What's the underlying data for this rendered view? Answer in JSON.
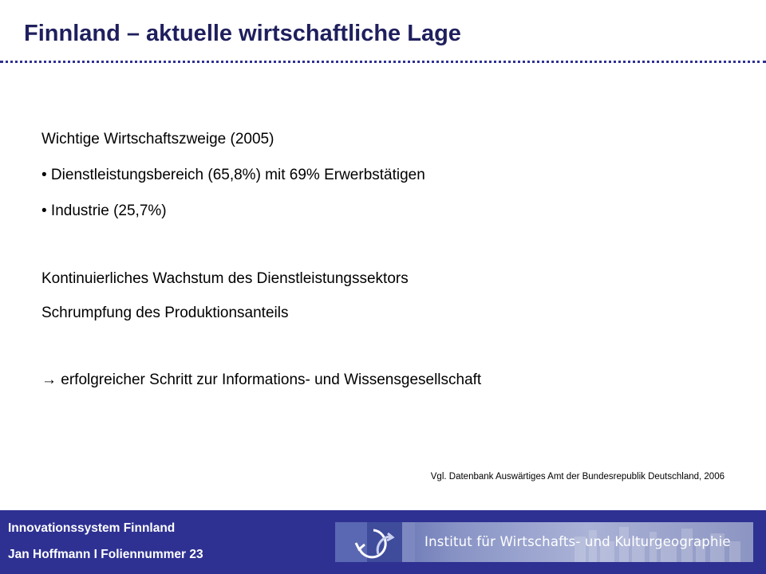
{
  "slide": {
    "title": "Finnland – aktuelle wirtschaftliche Lage"
  },
  "content": {
    "heading": "Wichtige Wirtschaftszweige (2005)",
    "bullets": [
      "• Dienstleistungsbereich  (65,8%) mit 69% Erwerbstätigen",
      "• Industrie (25,7%)"
    ],
    "trend_lines": [
      "Kontinuierliches  Wachstum des Dienstleistungssektors",
      "Schrumpfung des Produktionsanteils"
    ],
    "conclusion": "→ erfolgreicher Schritt zur Informations- und Wissensgesellschaft",
    "source": "Vgl. Datenbank Auswärtiges Amt der Bundesrepublik Deutschland, 2006"
  },
  "footer": {
    "topic": "Innovationssystem Finnland",
    "author_slide": "Jan Hoffmann I Foliennummer 23",
    "institute_banner": "Institut für Wirtschafts- und Kulturgeographie"
  },
  "colors": {
    "title": "#1f1f5e",
    "accent": "#2e3192",
    "footer_background": "#2e3192",
    "footer_text": "#ffffff"
  },
  "icons": {
    "banner_logo": "institute-logo-icon",
    "banner_background": "city-skyline-graphic"
  }
}
